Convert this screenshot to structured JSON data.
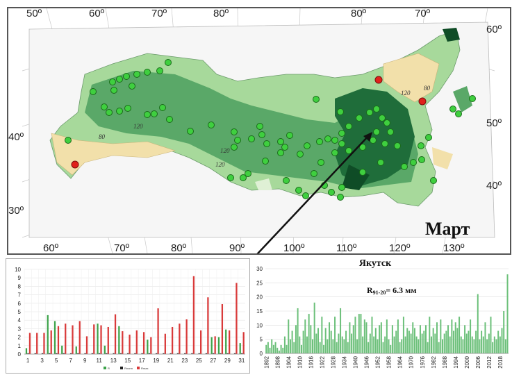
{
  "map": {
    "lon_top": [
      "50º",
      "60º",
      "70º",
      "80º",
      "80º",
      "70º"
    ],
    "lon_bottom": [
      "60º",
      "70º",
      "80º",
      "90º",
      "100º",
      "110º",
      "120º",
      "130º"
    ],
    "lat_left": [
      "40º",
      "30º"
    ],
    "lat_right": [
      "60º",
      "50º",
      "40º"
    ],
    "isolines": [
      "120",
      "120",
      "80",
      "120",
      "80",
      "120"
    ],
    "month": "Март",
    "colors": {
      "dark": "#0f5a2c",
      "mid": "#3f9a55",
      "light": "#8fcf8c",
      "pale": "#cdeac2",
      "sand": "#f2e0aa",
      "station": "#3fcf3f",
      "red": "#e0211b"
    }
  },
  "chart_data": [
    {
      "type": "bar",
      "x": [
        "1",
        "2",
        "3",
        "4",
        "5",
        "6",
        "7",
        "8",
        "9",
        "10",
        "11",
        "12",
        "13",
        "14",
        "15",
        "16",
        "17",
        "18",
        "19",
        "20",
        "21",
        "22",
        "23",
        "24",
        "25",
        "26",
        "27",
        "28",
        "29",
        "30",
        "31"
      ],
      "xticklabels": [
        "1",
        "3",
        "5",
        "7",
        "9",
        "11",
        "13",
        "15",
        "17",
        "19",
        "21",
        "23",
        "25",
        "27",
        "29",
        "31"
      ],
      "yticks": [
        "0",
        "1",
        "2",
        "3",
        "4",
        "5",
        "6",
        "7",
        "8",
        "9",
        "10"
      ],
      "ylim": [
        0,
        10
      ],
      "series": [
        {
          "name": "R",
          "color": "#3da34a",
          "values": [
            0.7,
            0,
            0,
            4.6,
            3.9,
            1.0,
            0,
            0.9,
            0,
            0,
            3.6,
            1.0,
            0,
            3.3,
            0,
            0,
            0,
            1.7,
            0,
            0,
            0,
            0,
            0,
            0,
            0,
            0,
            2.0,
            2.0,
            2.9,
            0,
            1.3
          ]
        },
        {
          "name": "Rnorm",
          "color": "#222222",
          "values": [
            0.1,
            0.1,
            0.1,
            0.1,
            0.1,
            0.1,
            0.1,
            0.1,
            0.1,
            0.1,
            0.1,
            0.1,
            0.1,
            0.1,
            0.1,
            0.1,
            0.1,
            0.1,
            0.1,
            0.1,
            0.1,
            0.1,
            0.1,
            0.1,
            0.1,
            0.1,
            0.1,
            0.1,
            0.1,
            0.1,
            0.1
          ]
        },
        {
          "name": "Rmax",
          "color": "#d93a3a",
          "values": [
            2.5,
            2.5,
            2.5,
            2.8,
            3.3,
            3.6,
            3.4,
            3.9,
            2.1,
            3.5,
            3.4,
            3.2,
            4.7,
            2.7,
            2.3,
            2.8,
            2.6,
            2.0,
            5.4,
            2.4,
            3.2,
            3.6,
            4.1,
            9.2,
            2.8,
            6.7,
            2.1,
            5.9,
            2.8,
            8.4,
            2.6
          ]
        }
      ]
    },
    {
      "type": "bar",
      "title": "Якутск",
      "annotation_label": "R",
      "annotation_sub": "91-20",
      "annotation_value": "= 6.3 мм",
      "yticks": [
        "0",
        "5",
        "10",
        "15",
        "20",
        "25",
        "30"
      ],
      "ylim": [
        0,
        30
      ],
      "xticklabels": [
        "1892",
        "1898",
        "1904",
        "1910",
        "1916",
        "1922",
        "1928",
        "1934",
        "1940",
        "1946",
        "1952",
        "1958",
        "1964",
        "1970",
        "1976",
        "1982",
        "1988",
        "1994",
        "2000",
        "2006",
        "2012",
        "2018"
      ],
      "x_start": 1892,
      "values": [
        3,
        4,
        2,
        5,
        3,
        4,
        2,
        1,
        3,
        2,
        6,
        3,
        12,
        5,
        8,
        4,
        10,
        16,
        6,
        3,
        8,
        12,
        6,
        14,
        10,
        5,
        18,
        7,
        9,
        4,
        13,
        3,
        9,
        5,
        11,
        8,
        5,
        13,
        4,
        7,
        16,
        6,
        5,
        8,
        4,
        11,
        7,
        10,
        13,
        5,
        14,
        14,
        6,
        12,
        11,
        4,
        7,
        13,
        6,
        9,
        5,
        10,
        11,
        4,
        6,
        12,
        5,
        3,
        10,
        6,
        8,
        12,
        4,
        5,
        13,
        6,
        9,
        8,
        7,
        11,
        9,
        6,
        5,
        10,
        7,
        8,
        10,
        4,
        13,
        6,
        9,
        7,
        11,
        4,
        12,
        5,
        7,
        8,
        10,
        6,
        12,
        8,
        11,
        9,
        13,
        6,
        5,
        10,
        7,
        8,
        12,
        6,
        5,
        8,
        21,
        5,
        8,
        6,
        11,
        5,
        7,
        13,
        4,
        6,
        5,
        8,
        6,
        9,
        15,
        5,
        28
      ]
    }
  ]
}
